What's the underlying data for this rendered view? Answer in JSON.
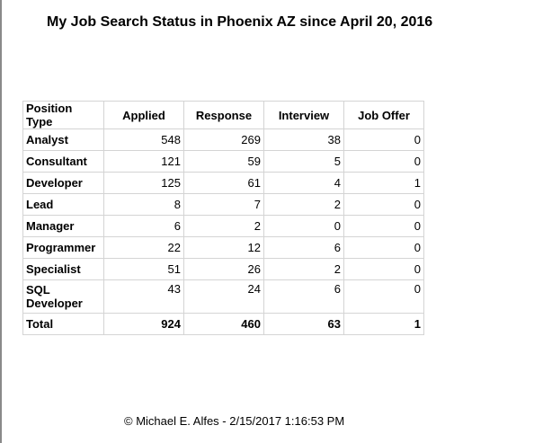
{
  "title": "My Job Search Status in Phoenix AZ since April 20, 2016",
  "table": {
    "headers": [
      "Position Type",
      "Applied",
      "Response",
      "Interview",
      "Job Offer"
    ],
    "rows": [
      {
        "type": "Analyst",
        "applied": "548",
        "response": "269",
        "interview": "38",
        "offer": "0"
      },
      {
        "type": "Consultant",
        "applied": "121",
        "response": "59",
        "interview": "5",
        "offer": "0"
      },
      {
        "type": "Developer",
        "applied": "125",
        "response": "61",
        "interview": "4",
        "offer": "1"
      },
      {
        "type": "Lead",
        "applied": "8",
        "response": "7",
        "interview": "2",
        "offer": "0"
      },
      {
        "type": "Manager",
        "applied": "6",
        "response": "2",
        "interview": "0",
        "offer": "0"
      },
      {
        "type": "Programmer",
        "applied": "22",
        "response": "12",
        "interview": "6",
        "offer": "0"
      },
      {
        "type": "Specialist",
        "applied": "51",
        "response": "26",
        "interview": "2",
        "offer": "0"
      },
      {
        "type": "SQL Developer",
        "applied": "43",
        "response": "24",
        "interview": "6",
        "offer": "0"
      }
    ],
    "total": {
      "type": "Total",
      "applied": "924",
      "response": "460",
      "interview": "63",
      "offer": "1"
    }
  },
  "footer": "© Michael E. Alfes -  2/15/2017 1:16:53 PM"
}
